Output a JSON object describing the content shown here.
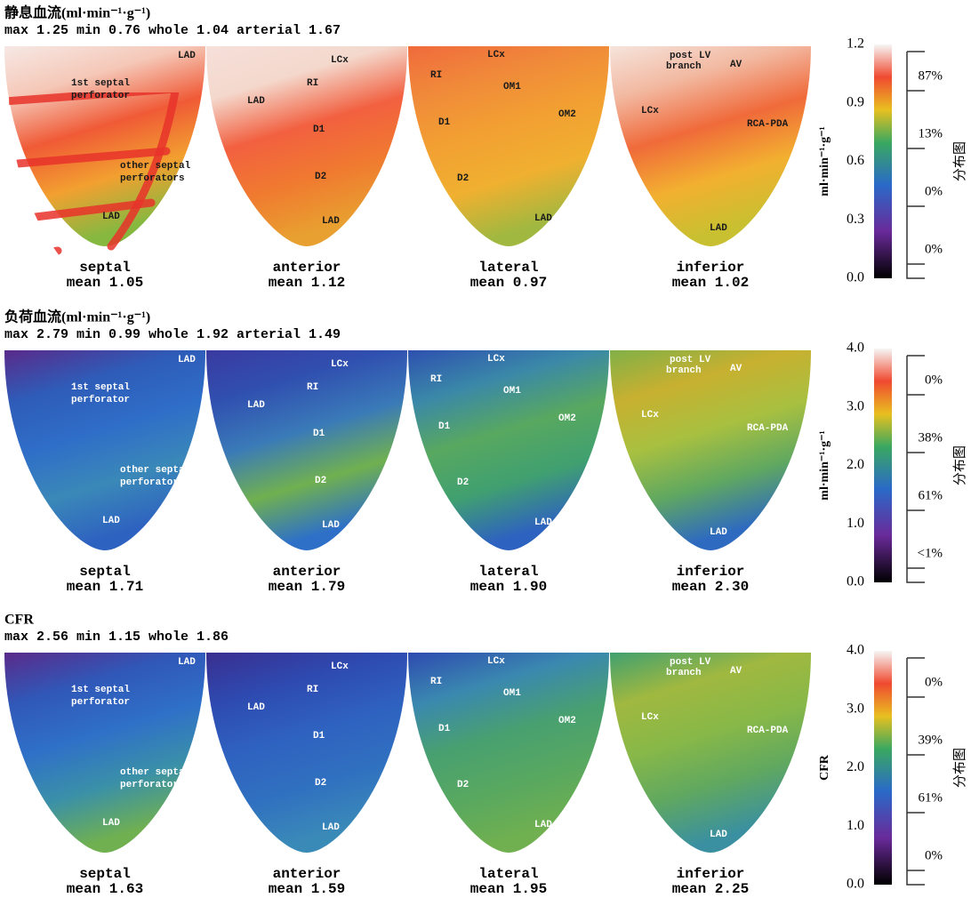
{
  "panels": [
    {
      "title": "静息血流(ml·min⁻¹·g⁻¹)",
      "stats": "max 1.25 min 0.76 whole 1.04 arterial 1.67",
      "views": [
        {
          "name": "septal",
          "mean": "mean 1.05",
          "vessels": [
            "LAD",
            "1st septal",
            "perforator",
            "other septal",
            "perforators",
            "LAD"
          ]
        },
        {
          "name": "anterior",
          "mean": "mean 1.12",
          "vessels": [
            "LCx",
            "RI",
            "LAD",
            "D1",
            "D2",
            "LAD"
          ]
        },
        {
          "name": "lateral",
          "mean": "mean 0.97",
          "vessels": [
            "LCx",
            "RI",
            "OM1",
            "OM2",
            "D1",
            "D2",
            "LAD"
          ]
        },
        {
          "name": "inferior",
          "mean": "mean 1.02",
          "vessels": [
            "post LV",
            "branch",
            "AV",
            "LCx",
            "RCA-PDA",
            "LAD"
          ]
        }
      ],
      "colorbar": {
        "ticks": [
          "1.2",
          "0.9",
          "0.6",
          "0.3",
          "0.0"
        ],
        "label": "ml·min⁻¹·g⁻¹",
        "distribution": [
          "87%",
          "13%",
          "0%",
          "0%"
        ],
        "distribution_label": "分布图"
      }
    },
    {
      "title": "负荷血流(ml·min⁻¹·g⁻¹)",
      "stats": "max 2.79 min 0.99 whole 1.92 arterial 1.49",
      "views": [
        {
          "name": "septal",
          "mean": "mean 1.71",
          "vessels": [
            "LAD",
            "1st septal",
            "perforator",
            "other septal",
            "perforators",
            "LAD"
          ]
        },
        {
          "name": "anterior",
          "mean": "mean 1.79",
          "vessels": [
            "LCx",
            "RI",
            "LAD",
            "D1",
            "D2",
            "LAD"
          ]
        },
        {
          "name": "lateral",
          "mean": "mean 1.90",
          "vessels": [
            "LCx",
            "RI",
            "OM1",
            "OM2",
            "D1",
            "D2",
            "LAD"
          ]
        },
        {
          "name": "inferior",
          "mean": "mean 2.30",
          "vessels": [
            "post LV",
            "branch",
            "AV",
            "LCx",
            "RCA-PDA",
            "LAD"
          ]
        }
      ],
      "colorbar": {
        "ticks": [
          "4.0",
          "3.0",
          "2.0",
          "1.0",
          "0.0"
        ],
        "label": "ml·min⁻¹·g⁻¹",
        "distribution": [
          "0%",
          "38%",
          "61%",
          "<1%"
        ],
        "distribution_label": "分布图"
      }
    },
    {
      "title": "CFR",
      "stats": "max 2.56 min 1.15 whole 1.86",
      "views": [
        {
          "name": "septal",
          "mean": "mean 1.63",
          "vessels": [
            "LAD",
            "1st septal",
            "perforator",
            "other septal",
            "perforators",
            "LAD"
          ]
        },
        {
          "name": "anterior",
          "mean": "mean 1.59",
          "vessels": [
            "LCx",
            "RI",
            "LAD",
            "D1",
            "D2",
            "LAD"
          ]
        },
        {
          "name": "lateral",
          "mean": "mean 1.95",
          "vessels": [
            "LCx",
            "RI",
            "OM1",
            "OM2",
            "D1",
            "D2",
            "LAD"
          ]
        },
        {
          "name": "inferior",
          "mean": "mean 2.25",
          "vessels": [
            "post LV",
            "branch",
            "AV",
            "LCx",
            "RCA-PDA",
            "LAD"
          ]
        }
      ],
      "colorbar": {
        "ticks": [
          "4.0",
          "3.0",
          "2.0",
          "1.0",
          "0.0"
        ],
        "label": "CFR",
        "distribution": [
          "0%",
          "39%",
          "61%",
          "0%"
        ],
        "distribution_label": "分布图"
      }
    }
  ]
}
